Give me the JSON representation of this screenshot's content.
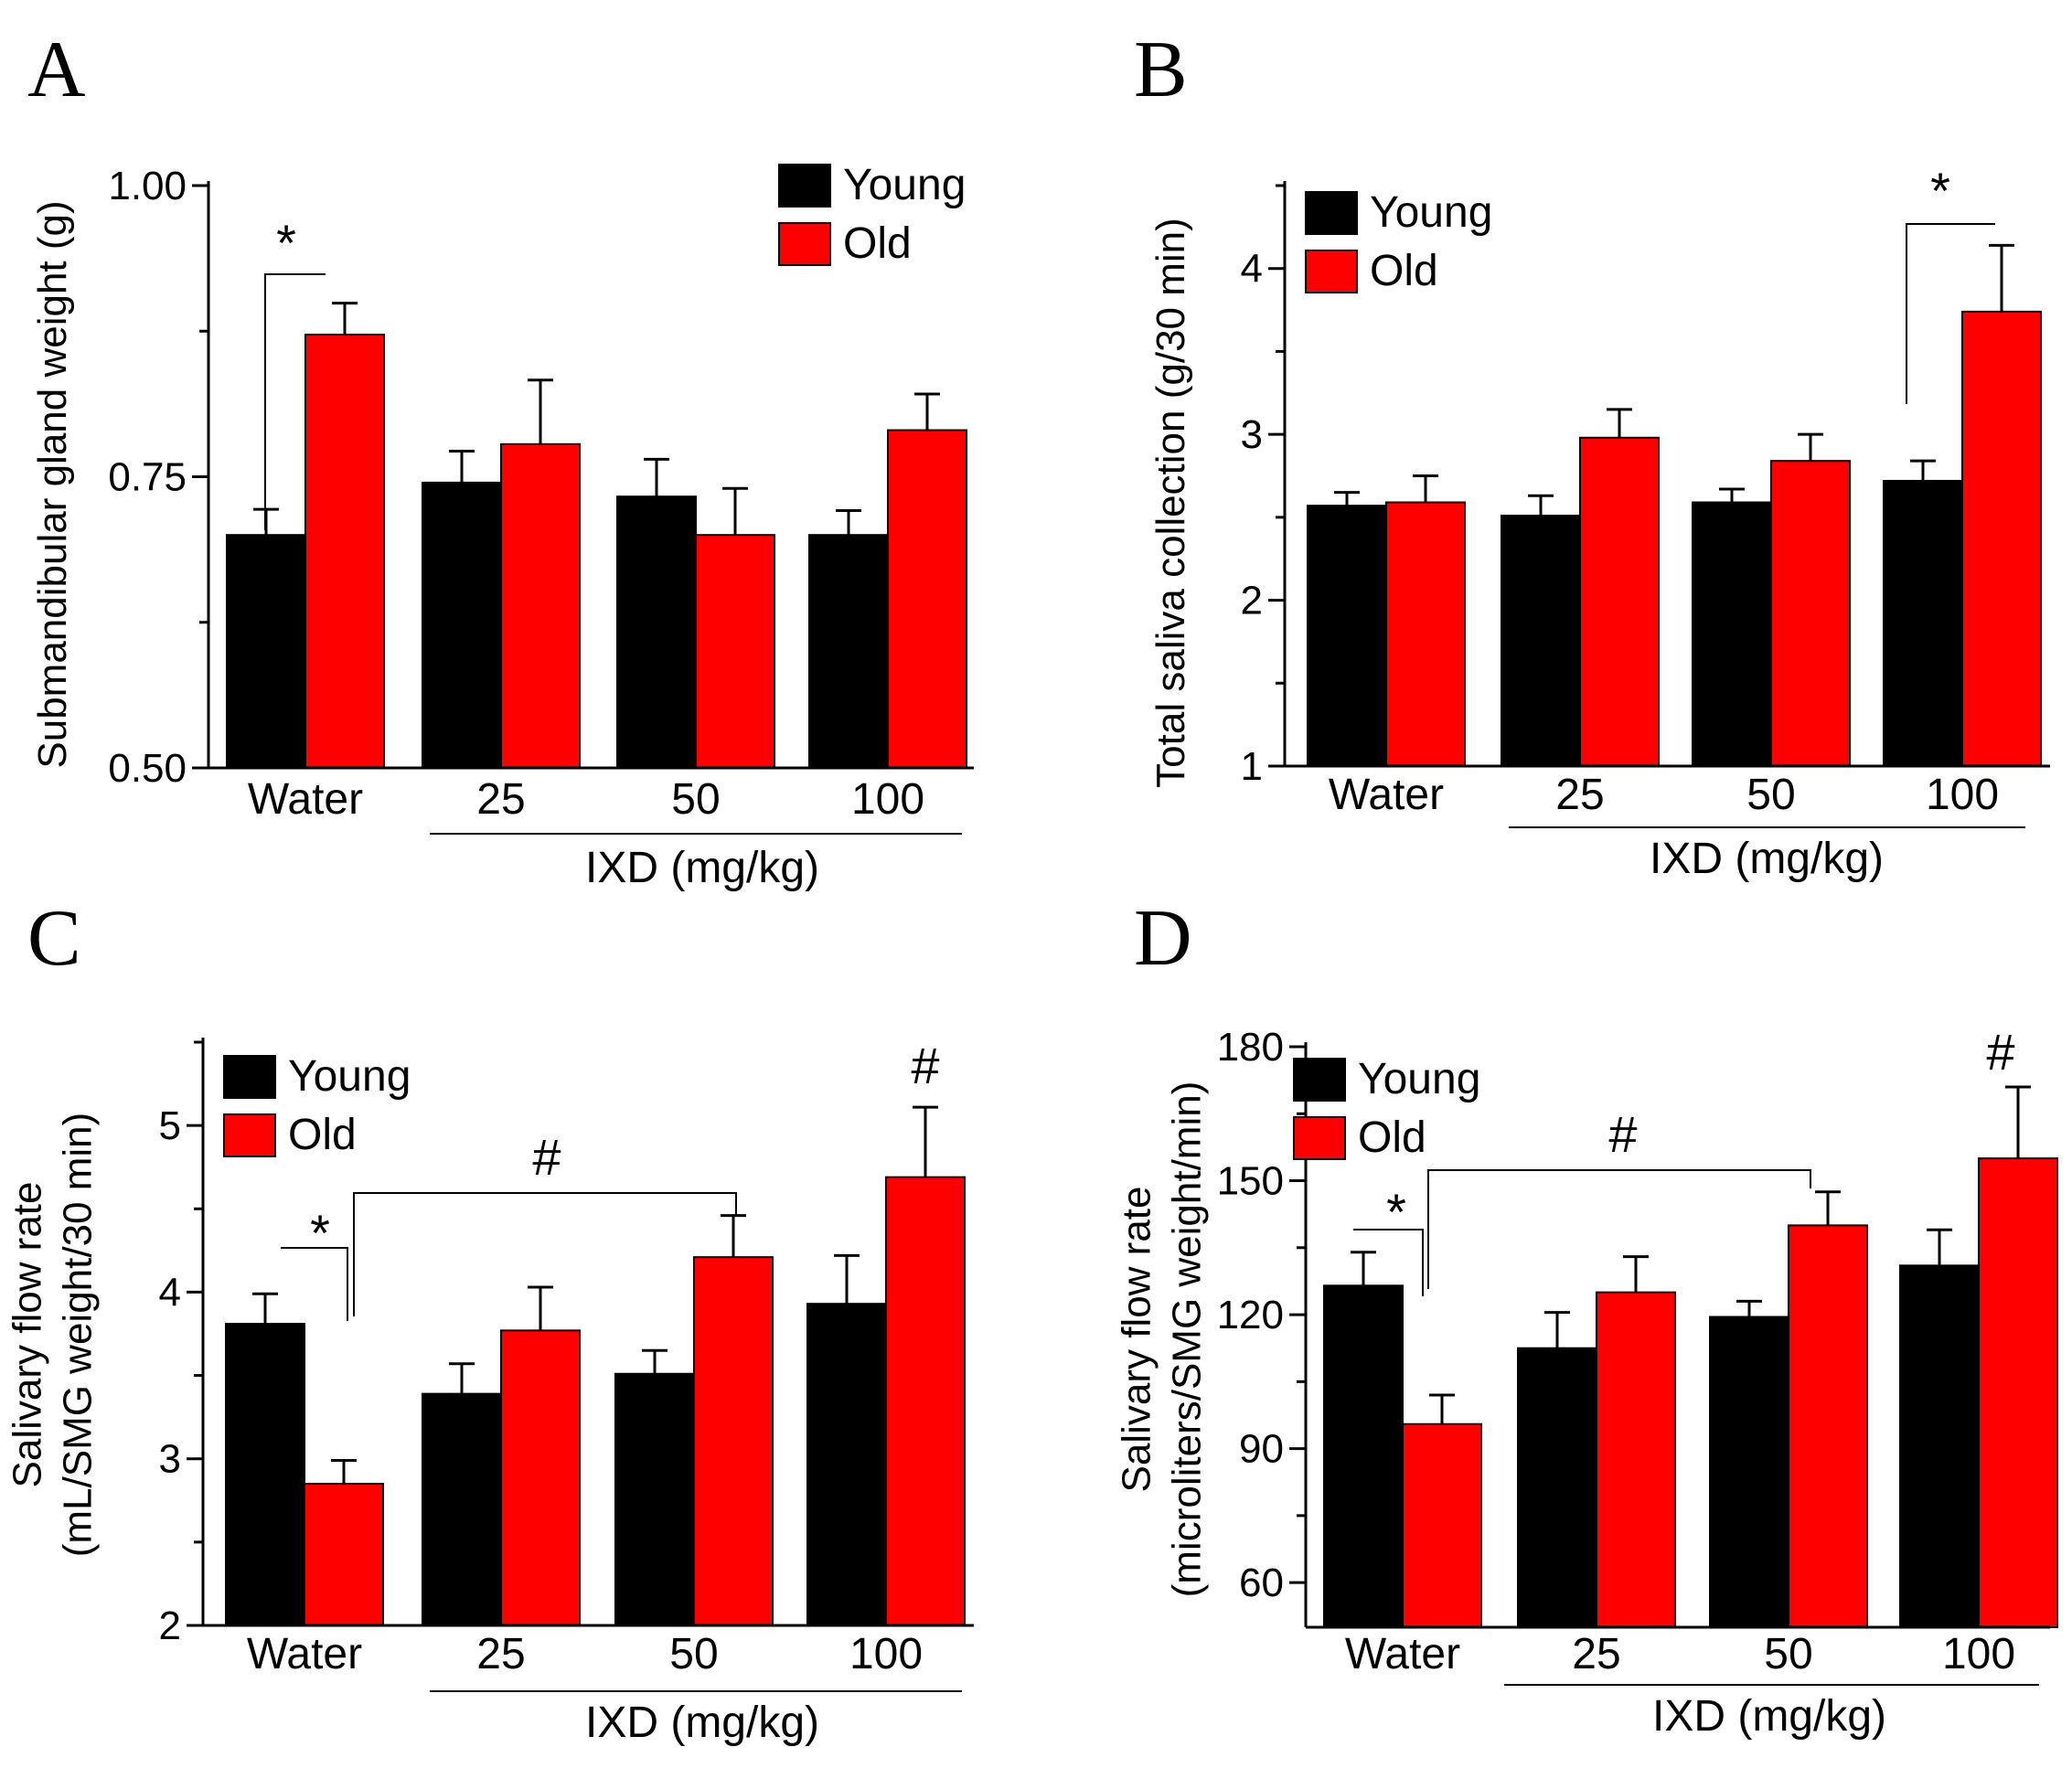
{
  "chart_data": [
    {
      "panel": "A",
      "type": "bar",
      "categories": [
        "Water",
        "25",
        "50",
        "100"
      ],
      "group_label": "IXD (mg/kg)",
      "ylabel": [
        "Submandibular gland weight (g)"
      ],
      "ylim": [
        0.5,
        1.0
      ],
      "yticks": [
        "0.50",
        "0.75",
        "1.00"
      ],
      "legend": [
        "Young",
        "Old"
      ],
      "legend_position": "top-right",
      "series": [
        {
          "name": "Young",
          "color": "#000000",
          "values": [
            0.7,
            0.745,
            0.733,
            0.7
          ],
          "errors": [
            0.022,
            0.027,
            0.032,
            0.021
          ]
        },
        {
          "name": "Old",
          "color": "#ff0000",
          "values": [
            0.872,
            0.778,
            0.7,
            0.79
          ],
          "errors": [
            0.027,
            0.055,
            0.04,
            0.031
          ]
        }
      ],
      "significance": [
        {
          "label": "*",
          "between": [
            "Water:Young",
            "Water:Old"
          ]
        }
      ]
    },
    {
      "panel": "B",
      "type": "bar",
      "categories": [
        "Water",
        "25",
        "50",
        "100"
      ],
      "group_label": "IXD (mg/kg)",
      "ylabel": [
        "Total saliva collection (g/30 min)"
      ],
      "ylim": [
        1,
        4.5
      ],
      "yticks": [
        "1",
        "2",
        "3",
        "4"
      ],
      "legend": [
        "Young",
        "Old"
      ],
      "legend_position": "top-left",
      "series": [
        {
          "name": "Young",
          "color": "#000000",
          "values": [
            2.57,
            2.51,
            2.59,
            2.72
          ],
          "errors": [
            0.08,
            0.12,
            0.08,
            0.12
          ]
        },
        {
          "name": "Old",
          "color": "#ff0000",
          "values": [
            2.59,
            2.98,
            2.84,
            3.74
          ],
          "errors": [
            0.16,
            0.17,
            0.16,
            0.4
          ]
        }
      ],
      "significance": [
        {
          "label": "*",
          "between": [
            "100:Young",
            "100:Old"
          ]
        }
      ]
    },
    {
      "panel": "C",
      "type": "bar",
      "categories": [
        "Water",
        "25",
        "50",
        "100"
      ],
      "group_label": "IXD (mg/kg)",
      "ylabel": [
        "Salivary flow rate",
        "(mL/SMG weight/30 min)"
      ],
      "ylim": [
        2,
        5.5
      ],
      "yticks": [
        "2",
        "3",
        "4",
        "5"
      ],
      "legend": [
        "Young",
        "Old"
      ],
      "legend_position": "top-left",
      "series": [
        {
          "name": "Young",
          "color": "#000000",
          "values": [
            3.81,
            3.39,
            3.51,
            3.93
          ],
          "errors": [
            0.18,
            0.18,
            0.14,
            0.29
          ]
        },
        {
          "name": "Old",
          "color": "#ff0000",
          "values": [
            2.85,
            3.77,
            4.21,
            4.69
          ],
          "errors": [
            0.14,
            0.26,
            0.25,
            0.42
          ]
        }
      ],
      "significance": [
        {
          "label": "*",
          "between": [
            "Water:Young",
            "Water:Old"
          ]
        },
        {
          "label": "#",
          "between": [
            "Water:Old",
            "50:Old"
          ]
        },
        {
          "label": "#",
          "above": "100:Old"
        }
      ]
    },
    {
      "panel": "D",
      "type": "bar",
      "categories": [
        "Water",
        "25",
        "50",
        "100"
      ],
      "group_label": "IXD (mg/kg)",
      "ylabel": [
        "Salivary flow rate",
        "(microliters/SMG weight/min)"
      ],
      "ylim": [
        50,
        180
      ],
      "yticks": [
        "60",
        "90",
        "120",
        "150",
        "180"
      ],
      "legend": [
        "Young",
        "Old"
      ],
      "legend_position": "top-left",
      "series": [
        {
          "name": "Young",
          "color": "#000000",
          "values": [
            126.5,
            112.5,
            119.5,
            131
          ],
          "errors": [
            7.5,
            8,
            3.5,
            8
          ]
        },
        {
          "name": "Old",
          "color": "#ff0000",
          "values": [
            95.5,
            125,
            140,
            155
          ],
          "errors": [
            6.5,
            8,
            7.5,
            16
          ]
        }
      ],
      "significance": [
        {
          "label": "*",
          "between": [
            "Water:Young",
            "Water:Old"
          ]
        },
        {
          "label": "#",
          "between": [
            "Water:Old",
            "50:Old"
          ]
        },
        {
          "label": "#",
          "above": "100:Old"
        }
      ]
    }
  ]
}
